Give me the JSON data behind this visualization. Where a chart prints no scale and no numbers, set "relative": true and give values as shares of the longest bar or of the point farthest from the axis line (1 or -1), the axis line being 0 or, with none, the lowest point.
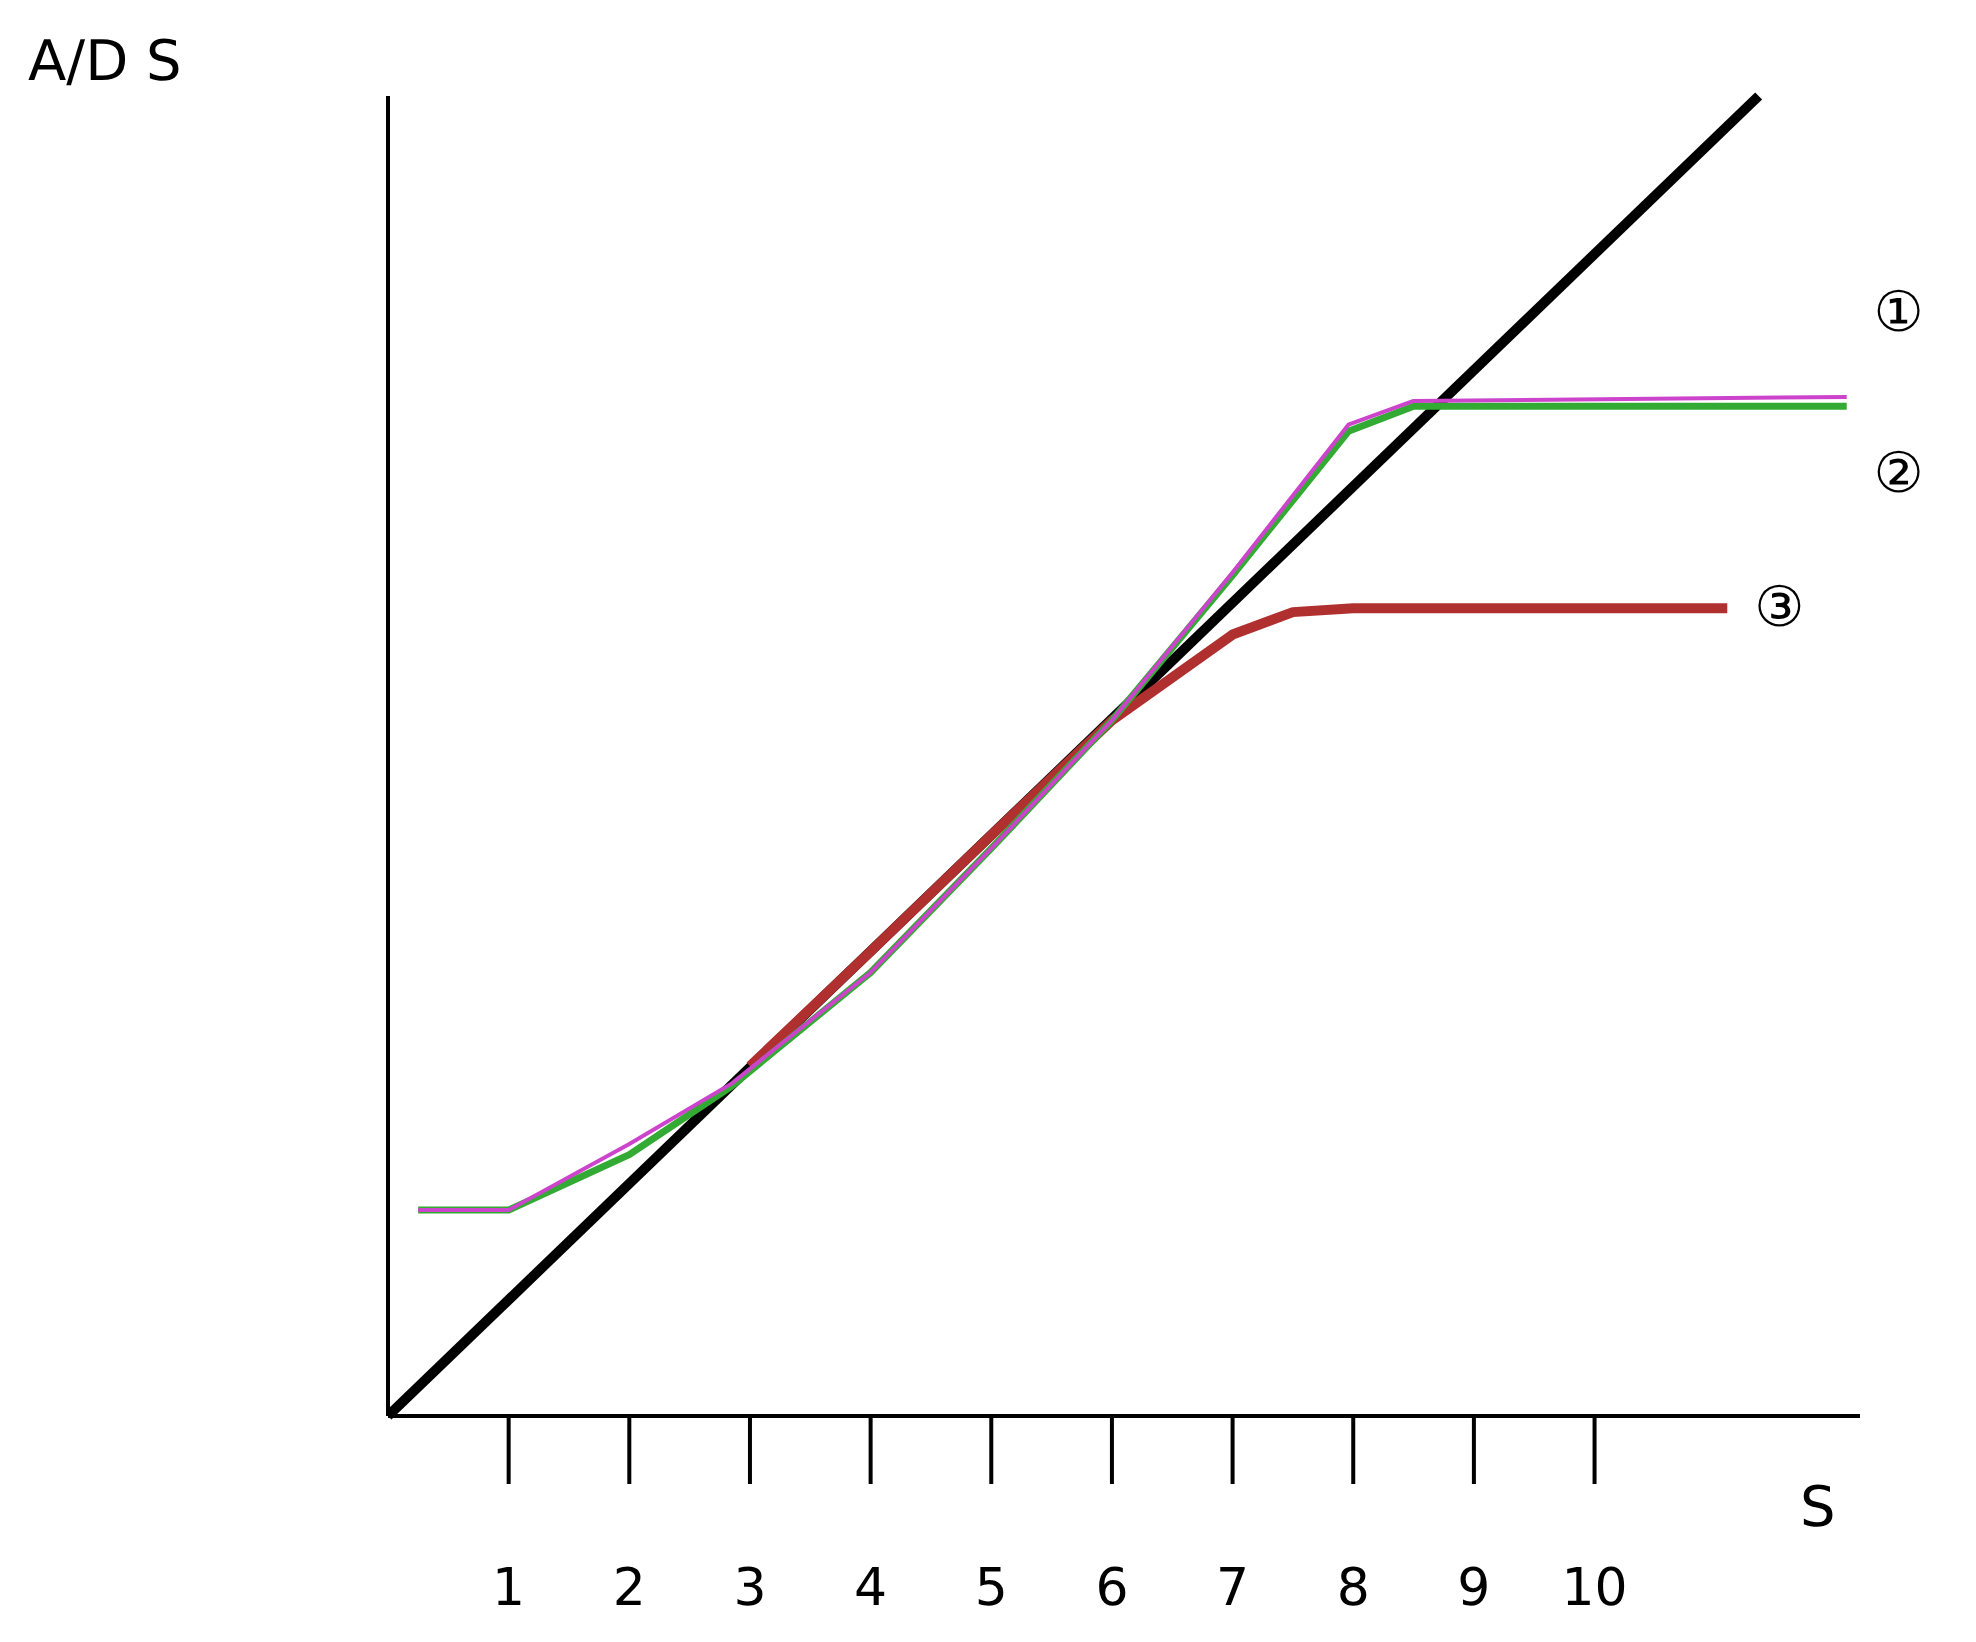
{
  "chart_data": {
    "type": "line",
    "relative": true,
    "xlabel": "S",
    "ylabel": "A/D S",
    "xlim": [
      0,
      12.2
    ],
    "xticks": [
      1,
      2,
      3,
      4,
      5,
      6,
      7,
      8,
      9,
      10
    ],
    "grid": false,
    "legend": false,
    "marker": "none",
    "line_style": "solid",
    "series": [
      {
        "name": "①",
        "color": "#cc44cc",
        "x": [
          0.25,
          1,
          2,
          2.85,
          4,
          5,
          6,
          7,
          7.96,
          8.5,
          12.09
        ],
        "values": [
          0.156,
          0.156,
          0.206,
          0.252,
          0.336,
          0.43,
          0.527,
          0.639,
          0.751,
          0.769,
          0.772
        ]
      },
      {
        "name": "②",
        "color": "#33aa33",
        "x": [
          0.25,
          1,
          2,
          2.85,
          4,
          5,
          6,
          7,
          7.96,
          8.5,
          12.09
        ],
        "values": [
          0.156,
          0.156,
          0.198,
          0.25,
          0.336,
          0.43,
          0.527,
          0.637,
          0.746,
          0.765,
          0.765
        ]
      },
      {
        "name": "③",
        "color": "#b03030",
        "x": [
          3,
          4,
          5,
          6,
          7,
          7.5,
          8,
          11.1
        ],
        "values": [
          0.265,
          0.352,
          0.44,
          0.527,
          0.592,
          0.609,
          0.612,
          0.612
        ]
      },
      {
        "color": "#000000",
        "x": [
          0,
          11.36
        ],
        "values": [
          0,
          1
        ]
      }
    ]
  }
}
